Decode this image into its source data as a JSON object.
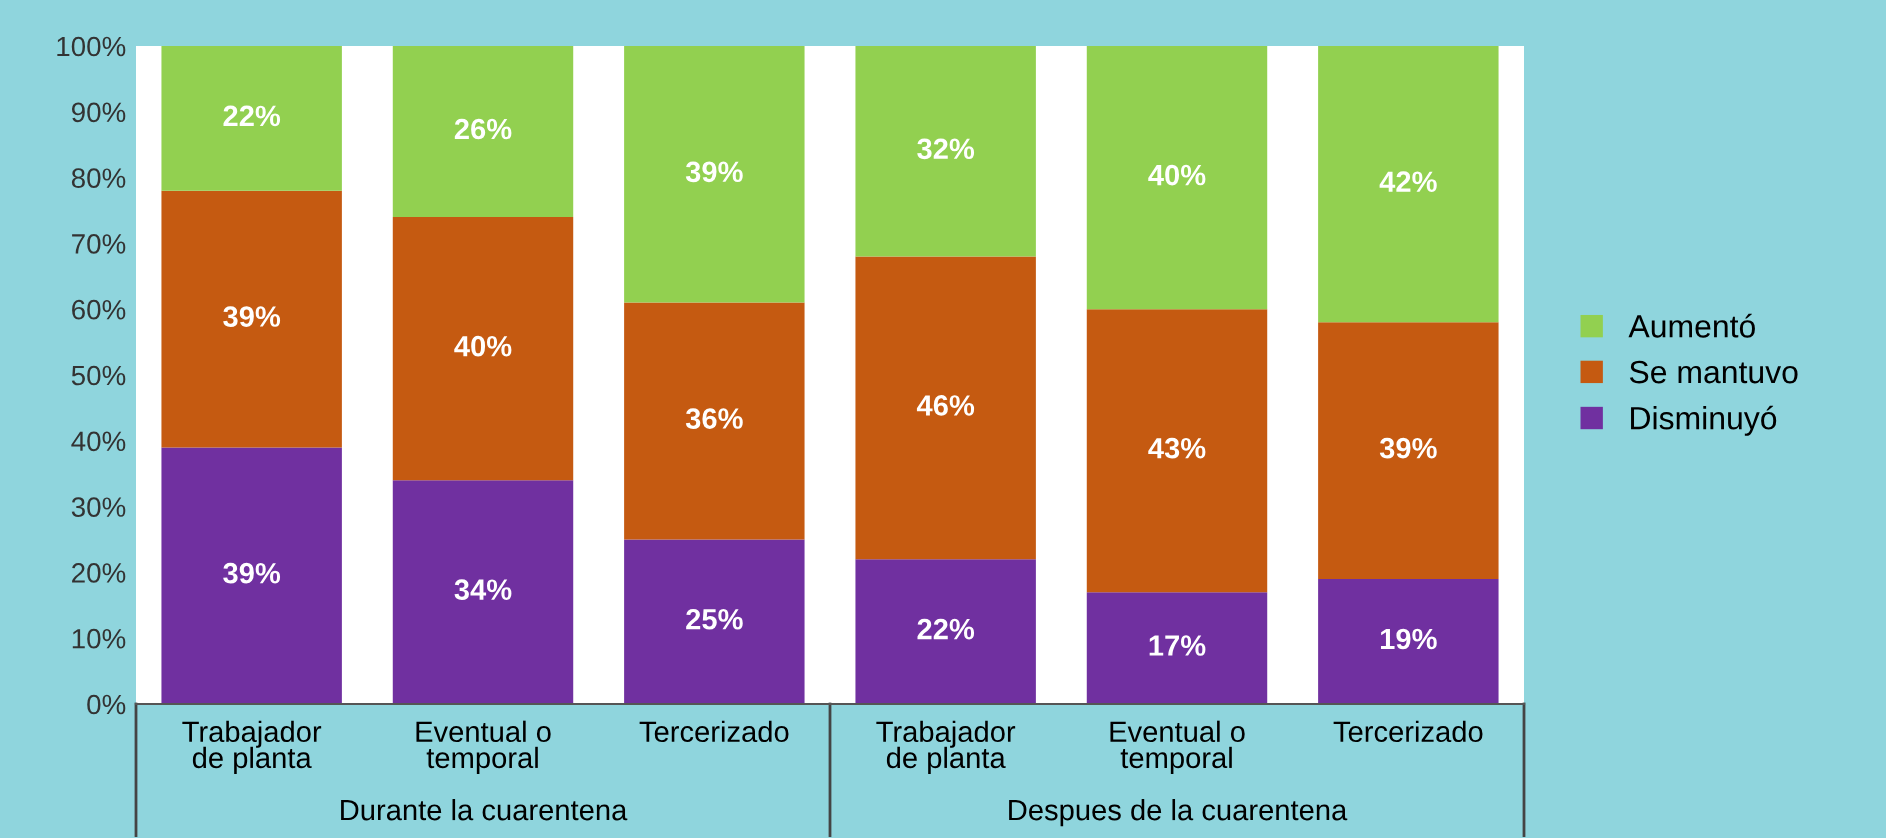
{
  "chart_data": {
    "type": "bar",
    "stacked": true,
    "categories": [
      "Trabajador\nde planta",
      "Eventual o\ntemporal",
      "Tercerizado",
      "Trabajador\nde planta",
      "Eventual o\ntemporal",
      "Tercerizado"
    ],
    "series": [
      {
        "name": "Disminuyó",
        "color": "#7030a0",
        "values": [
          39,
          34,
          25,
          22,
          17,
          19
        ],
        "value_labels": [
          "39%",
          "34%",
          "25%",
          "22%",
          "17%",
          "19%"
        ]
      },
      {
        "name": "Se mantuvo",
        "color": "#c55a11",
        "values": [
          39,
          40,
          36,
          46,
          43,
          39
        ],
        "value_labels": [
          "39%",
          "40%",
          "36%",
          "46%",
          "43%",
          "39%"
        ]
      },
      {
        "name": "Aumentó",
        "color": "#92d050",
        "values": [
          22,
          26,
          39,
          32,
          40,
          42
        ],
        "value_labels": [
          "22%",
          "26%",
          "39%",
          "32%",
          "40%",
          "42%"
        ]
      }
    ],
    "annotations": [
      "Durante la cuarentena",
      "Despues de la cuarentena"
    ],
    "ylim": [
      0,
      100
    ],
    "yticks": [
      {
        "value": 0,
        "label": "0%"
      },
      {
        "value": 10,
        "label": "10%"
      },
      {
        "value": 20,
        "label": "20%"
      },
      {
        "value": 30,
        "label": "30%"
      },
      {
        "value": 40,
        "label": "40%"
      },
      {
        "value": 50,
        "label": "50%"
      },
      {
        "value": 60,
        "label": "60%"
      },
      {
        "value": 70,
        "label": "70%"
      },
      {
        "value": 80,
        "label": "80%"
      },
      {
        "value": 90,
        "label": "90%"
      },
      {
        "value": 100,
        "label": "100%"
      }
    ],
    "grid": false,
    "legend": "right"
  }
}
